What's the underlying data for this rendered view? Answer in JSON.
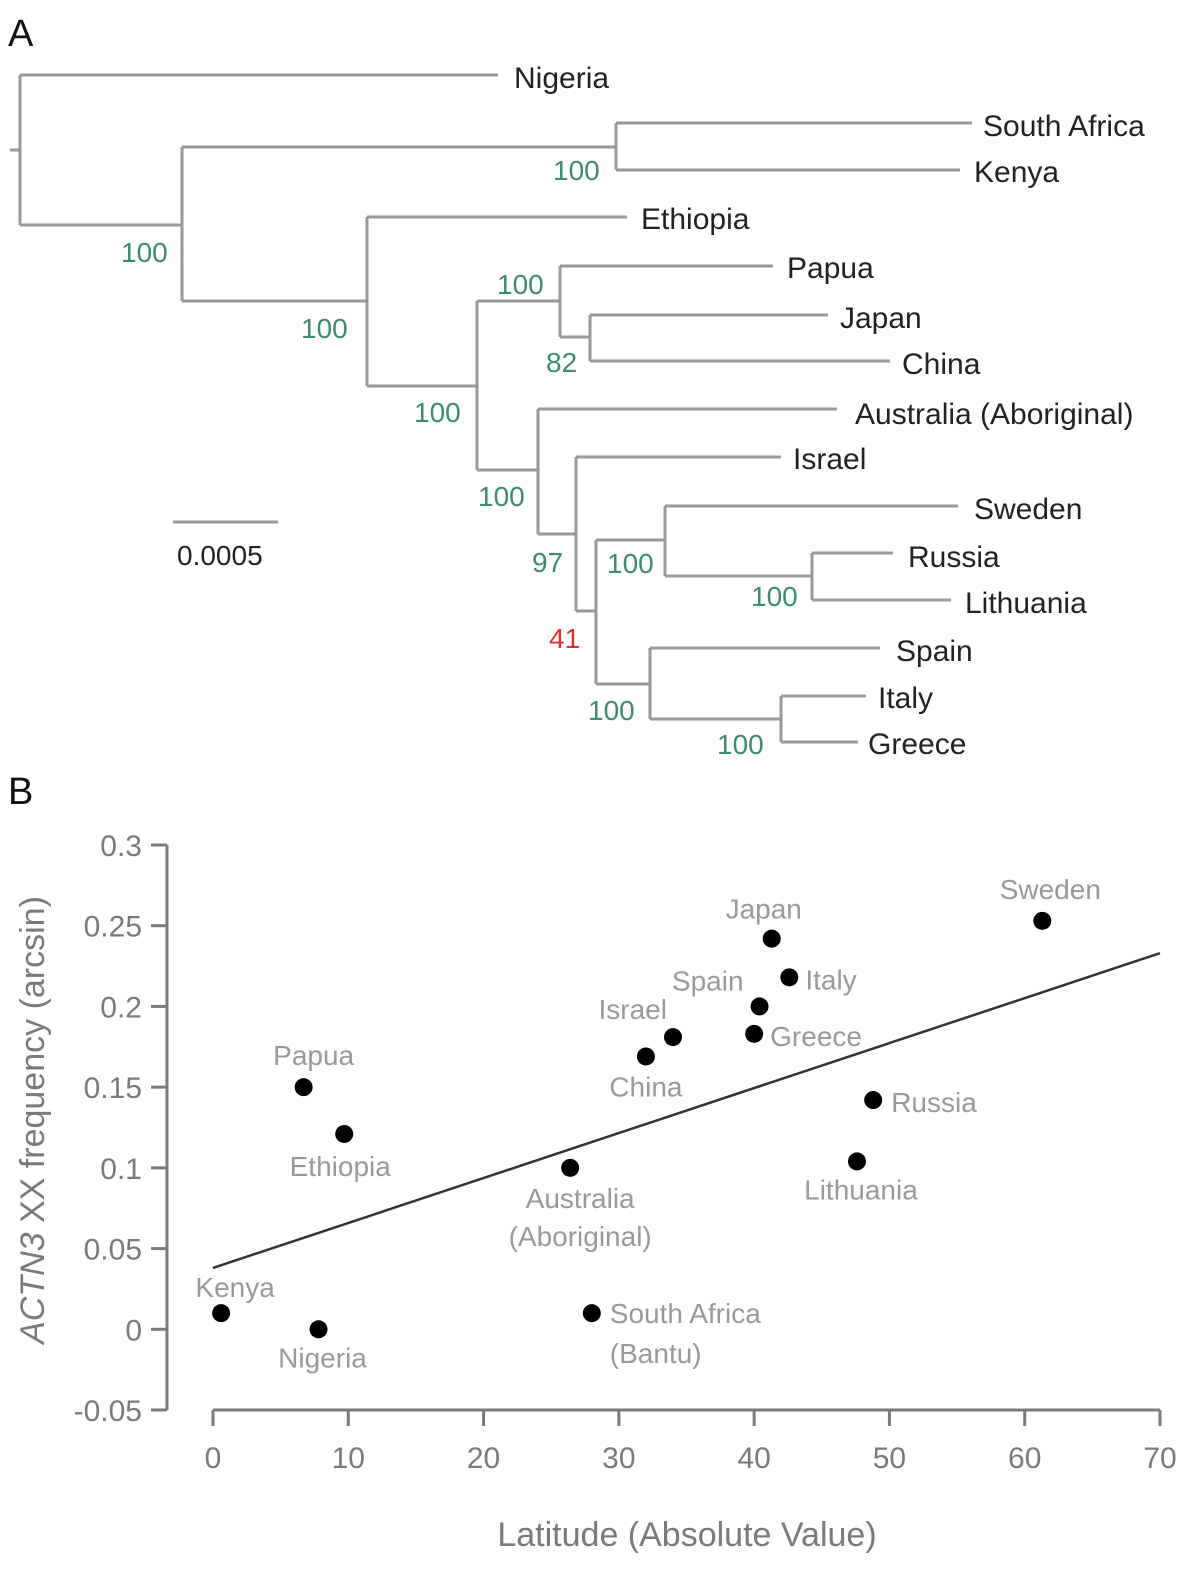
{
  "panel_a": {
    "label": "A",
    "scale_bar_label": "0.0005",
    "leaves": [
      "Nigeria",
      "South Africa",
      "Kenya",
      "Ethiopia",
      "Papua",
      "Japan",
      "China",
      "Australia (Aboriginal)",
      "Israel",
      "Sweden",
      "Russia",
      "Lithuania",
      "Spain",
      "Italy",
      "Greece"
    ],
    "bootstrap": [
      {
        "id": "sa-kenya",
        "value": "100",
        "color": "#3d8a75"
      },
      {
        "id": "root-inner",
        "value": "100",
        "color": "#3d8a75"
      },
      {
        "id": "eth-node",
        "value": "100",
        "color": "#3d8a75"
      },
      {
        "id": "papua-node",
        "value": "100",
        "color": "#3d8a75"
      },
      {
        "id": "japan-china",
        "value": "82",
        "color": "#3d8a75"
      },
      {
        "id": "nonafr-node",
        "value": "100",
        "color": "#3d8a75"
      },
      {
        "id": "aus-node",
        "value": "100",
        "color": "#3d8a75"
      },
      {
        "id": "israel-node",
        "value": "97",
        "color": "#3d8a75"
      },
      {
        "id": "sweden-node",
        "value": "100",
        "color": "#3d8a75"
      },
      {
        "id": "russia-lith",
        "value": "100",
        "color": "#3d8a75"
      },
      {
        "id": "europe-node",
        "value": "41",
        "color": "#e03030"
      },
      {
        "id": "spain-node",
        "value": "100",
        "color": "#3d8a75"
      },
      {
        "id": "italy-greece",
        "value": "100",
        "color": "#3d8a75"
      }
    ]
  },
  "panel_b": {
    "label": "B"
  },
  "chart_data": {
    "type": "scatter",
    "xlabel": "Latitude (Absolute Value)",
    "ylabel_italic": "ACTN3",
    "ylabel_rest": " XX frequency (arcsin)",
    "xlim": [
      0,
      70
    ],
    "ylim": [
      -0.05,
      0.3
    ],
    "xticks": [
      "0",
      "10",
      "20",
      "30",
      "40",
      "50",
      "60",
      "70"
    ],
    "yticks": [
      "-0.05",
      "0",
      "0.05",
      "0.1",
      "0.15",
      "0.2",
      "0.25",
      "0.3"
    ],
    "points": [
      {
        "label": "Papua",
        "x": 6.7,
        "y": 0.15
      },
      {
        "label": "Ethiopia",
        "x": 9.7,
        "y": 0.121
      },
      {
        "label": "Kenya",
        "x": 0.6,
        "y": 0.01
      },
      {
        "label": "Nigeria",
        "x": 7.8,
        "y": 0.0
      },
      {
        "label": "Australia (Aboriginal)",
        "label_lines": [
          "Australia",
          "(Aboriginal)"
        ],
        "x": 26.4,
        "y": 0.1
      },
      {
        "label": "South Africa (Bantu)",
        "label_lines": [
          "South Africa",
          "(Bantu)"
        ],
        "x": 28.0,
        "y": 0.01
      },
      {
        "label": "China",
        "x": 32.0,
        "y": 0.169
      },
      {
        "label": "Israel",
        "x": 34.0,
        "y": 0.181
      },
      {
        "label": "Greece",
        "x": 40.0,
        "y": 0.183
      },
      {
        "label": "Spain",
        "x": 40.4,
        "y": 0.2
      },
      {
        "label": "Japan",
        "x": 41.3,
        "y": 0.242
      },
      {
        "label": "Italy",
        "x": 42.6,
        "y": 0.218
      },
      {
        "label": "Lithuania",
        "x": 47.6,
        "y": 0.104
      },
      {
        "label": "Russia",
        "x": 48.8,
        "y": 0.142
      },
      {
        "label": "Sweden",
        "x": 61.3,
        "y": 0.253
      }
    ],
    "trendline": {
      "x": [
        0,
        70
      ],
      "y": [
        0.038,
        0.233
      ]
    },
    "colors": {
      "points": "#000000",
      "axis": "#7a7a7a",
      "trend": "#333333",
      "point_labels": "#999999",
      "tree": "#999999"
    }
  }
}
